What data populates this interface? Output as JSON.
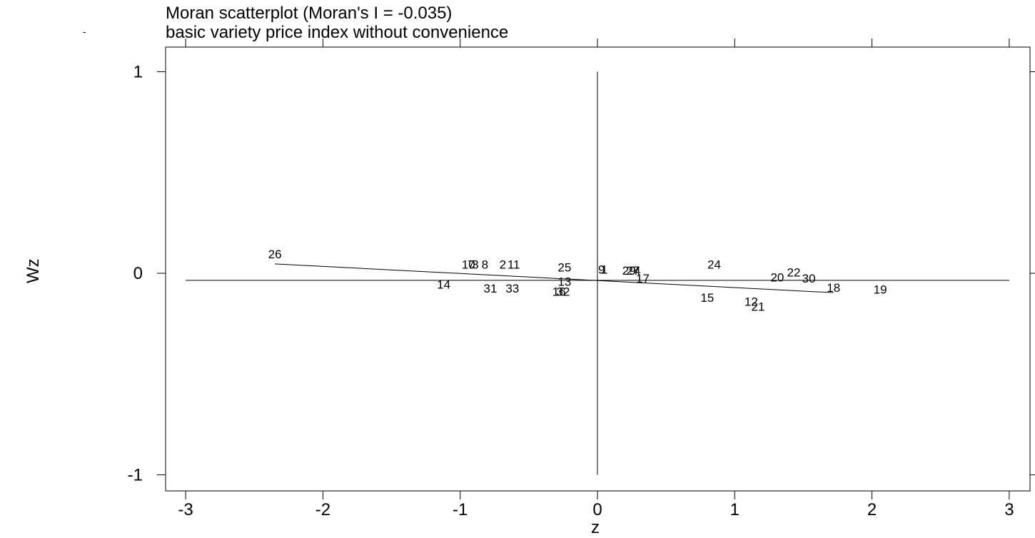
{
  "chart_data": {
    "type": "scatter",
    "title": "Moran scatterplot (Moran's I = -0.035)",
    "subtitle": "basic variety price index without convenience",
    "stray_mark": "-",
    "xlabel": "z",
    "ylabel": "Wz",
    "xlim": [
      -3.15,
      3.15
    ],
    "ylim": [
      -1.08,
      1.06
    ],
    "xticks": [
      -3,
      -2,
      -1,
      0,
      1,
      2,
      3
    ],
    "xtick_labels": [
      "-3",
      "-2",
      "-1",
      "0",
      "1",
      "2",
      "3"
    ],
    "yticks": [
      -1,
      0,
      1
    ],
    "ytick_labels": [
      "-1",
      "0",
      "1"
    ],
    "grid": false,
    "reference_lines": {
      "vertical_x": 0,
      "horizontal_y": -0.035,
      "v_range": [
        -1,
        1
      ],
      "h_range": [
        -3,
        3
      ]
    },
    "regression_line": {
      "slope": -0.035,
      "intercept": -0.036,
      "x_range": [
        -2.35,
        1.72
      ]
    },
    "points": [
      {
        "label": "26",
        "x": -2.35,
        "y": 0.095
      },
      {
        "label": "10",
        "x": -0.94,
        "y": 0.045
      },
      {
        "label": "7",
        "x": -0.92,
        "y": 0.045
      },
      {
        "label": "3",
        "x": -0.89,
        "y": 0.045
      },
      {
        "label": "8",
        "x": -0.82,
        "y": 0.045
      },
      {
        "label": "2",
        "x": -0.69,
        "y": 0.045
      },
      {
        "label": "11",
        "x": -0.61,
        "y": 0.045
      },
      {
        "label": "14",
        "x": -1.12,
        "y": -0.055
      },
      {
        "label": "31",
        "x": -0.78,
        "y": -0.075
      },
      {
        "label": "33",
        "x": -0.62,
        "y": -0.075
      },
      {
        "label": "25",
        "x": -0.24,
        "y": 0.03
      },
      {
        "label": "13",
        "x": -0.24,
        "y": -0.04
      },
      {
        "label": "16",
        "x": -0.28,
        "y": -0.09
      },
      {
        "label": "32",
        "x": -0.25,
        "y": -0.09
      },
      {
        "label": "9",
        "x": 0.03,
        "y": 0.02
      },
      {
        "label": "1",
        "x": 0.05,
        "y": 0.02
      },
      {
        "label": "29",
        "x": 0.23,
        "y": 0.015
      },
      {
        "label": "27",
        "x": 0.26,
        "y": 0.015
      },
      {
        "label": "4",
        "x": 0.29,
        "y": 0.015
      },
      {
        "label": "17",
        "x": 0.33,
        "y": -0.025
      },
      {
        "label": "24",
        "x": 0.85,
        "y": 0.045
      },
      {
        "label": "15",
        "x": 0.8,
        "y": -0.12
      },
      {
        "label": "12",
        "x": 1.12,
        "y": -0.14
      },
      {
        "label": "21",
        "x": 1.17,
        "y": -0.165
      },
      {
        "label": "20",
        "x": 1.31,
        "y": -0.02
      },
      {
        "label": "22",
        "x": 1.43,
        "y": 0.005
      },
      {
        "label": "30",
        "x": 1.54,
        "y": -0.025
      },
      {
        "label": "18",
        "x": 1.72,
        "y": -0.07
      },
      {
        "label": "19",
        "x": 2.06,
        "y": -0.08
      }
    ]
  }
}
